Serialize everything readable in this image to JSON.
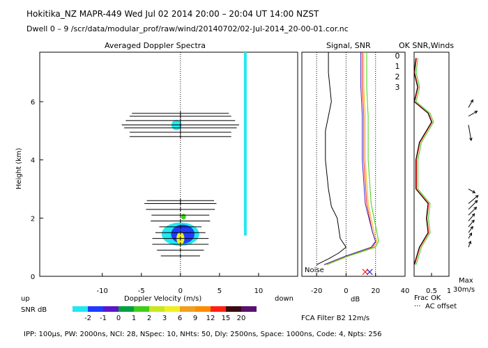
{
  "header": {
    "line1": "Hokitika_NZ   MAPR-449   Wed Jul 02 2014 20:00 – 20:04 UT 14:00 NZST",
    "line2": "Dwell   0 –   9   /scr/data/modular_prof/raw/wind/20140702/02-Jul-2014_20-00-01.cor.nc"
  },
  "footer": {
    "params": "IPP: 100µs,  PW: 2000ns,  NCI:  28,  NSpec: 10, NHts: 50,  Dly: 2500ns,  Space: 1000ns,  Code: 4,  Npts: 256",
    "fca": "FCA Filter B2 12m/s"
  },
  "colors": {
    "cyan": "#22e8f0",
    "blue": "#1f3bff",
    "purple": "#5a16c8",
    "green": "#3ecf1a",
    "yellow": "#f0f020",
    "red": "#ff2010",
    "orange": "#ff9a00",
    "noise": "#000000"
  },
  "chart_data": [
    {
      "id": "spectra",
      "type": "heatmap",
      "title": "Averaged Doppler Spectra",
      "xlabel": "Doppler Velocity (m/s)",
      "ylabel": "Height (km)",
      "xlim": [
        -18,
        15
      ],
      "ylim": [
        0,
        7.7
      ],
      "xticks": [
        -10,
        -5,
        0,
        5,
        10
      ],
      "yticks": [
        0,
        2,
        4,
        6
      ],
      "labels": {
        "up": "up",
        "down": "down"
      },
      "colorbar": {
        "label": "SNR dB",
        "levels": [
          "-2",
          "-1",
          "0",
          "1",
          "2",
          "3",
          "6",
          "9",
          "12",
          "15",
          "20"
        ],
        "colors": [
          "#22e8f0",
          "#1f3bff",
          "#5a16c8",
          "#00a040",
          "#3ecf1a",
          "#c8e81e",
          "#f0f020",
          "#f0a020",
          "#ff8c00",
          "#ff2010",
          "#3a0a10",
          "#5a1070"
        ]
      },
      "echo_regions": [
        {
          "name": "upper-echo",
          "center_v": -0.5,
          "center_h": 5.2,
          "width_v": 1.3,
          "height_km": 0.35,
          "level": "cyan"
        },
        {
          "name": "low-cyan",
          "center_v": 0.0,
          "center_h": 1.45,
          "width_v": 4.8,
          "height_km": 0.8,
          "level": "cyan"
        },
        {
          "name": "low-blue",
          "center_v": 0.3,
          "center_h": 1.45,
          "width_v": 3.0,
          "height_km": 0.65,
          "level": "blue"
        },
        {
          "name": "low-yellow",
          "center_v": 0.0,
          "center_h": 1.3,
          "width_v": 1.0,
          "height_km": 0.45,
          "level": "yellow"
        },
        {
          "name": "mid-green",
          "center_v": 0.4,
          "center_h": 2.05,
          "width_v": 0.6,
          "height_km": 0.2,
          "level": "green"
        }
      ],
      "clutter_line_velocity": 8.3,
      "clutter_line_height_range": [
        1.4,
        7.7
      ],
      "error_bar_heights": [
        0.7,
        0.9,
        1.1,
        1.3,
        1.5,
        1.7,
        1.9,
        2.1,
        2.3,
        2.5,
        2.6,
        4.8,
        4.95,
        5.1,
        5.2,
        5.35,
        5.5,
        5.6
      ],
      "error_bar_halfwidths": [
        2.5,
        3.0,
        3.6,
        3.6,
        3.2,
        2.7,
        3.8,
        3.7,
        4.4,
        4.6,
        4.3,
        6.5,
        6.5,
        7.2,
        7.5,
        7.0,
        6.5,
        6.2
      ]
    },
    {
      "id": "signal",
      "type": "line",
      "title": "Signal, SNR",
      "xlabel": "dB",
      "xlim": [
        -30,
        40
      ],
      "xticks": [
        -20,
        0,
        20,
        40
      ],
      "noise_label": "Noise",
      "series": [
        {
          "name": "signal",
          "color": "#000000",
          "heights": [
            0.4,
            0.6,
            0.8,
            1.0,
            1.3,
            2.0,
            2.4,
            3.0,
            4.0,
            5.0,
            5.5,
            6.0,
            7.0,
            7.7
          ],
          "values": [
            -20,
            -12,
            -5,
            0,
            -4,
            -6,
            -10,
            -12,
            -14,
            -14,
            -12,
            -10,
            -12,
            -12
          ]
        },
        {
          "name": "SNR 0",
          "color": "#ff2010",
          "heights": [
            0.4,
            0.7,
            1.0,
            1.2,
            1.5,
            2.5,
            4.0,
            5.5,
            6.5,
            7.7
          ],
          "values": [
            -15,
            0,
            18,
            20,
            18,
            14,
            12,
            12,
            11,
            11
          ]
        },
        {
          "name": "SNR 1",
          "color": "#f0b000",
          "heights": [
            0.4,
            0.7,
            1.0,
            1.2,
            1.5,
            2.5,
            4.0,
            5.5,
            6.5,
            7.7
          ],
          "values": [
            -14,
            1,
            19,
            21,
            19,
            15,
            13,
            13,
            12,
            12
          ]
        },
        {
          "name": "SNR 2",
          "color": "#3ecf1a",
          "heights": [
            0.4,
            0.7,
            1.0,
            1.2,
            1.5,
            2.5,
            4.0,
            5.5,
            6.5,
            7.7
          ],
          "values": [
            -13,
            2,
            20,
            22,
            21,
            17,
            15,
            15,
            14,
            14
          ]
        },
        {
          "name": "SNR 3",
          "color": "#4020c0",
          "heights": [
            0.4,
            0.7,
            1.0,
            1.2,
            1.5,
            2.5,
            4.0,
            5.5,
            6.5,
            7.7
          ],
          "values": [
            -15,
            0,
            17,
            20,
            18,
            13,
            11,
            11,
            10,
            10
          ]
        }
      ],
      "noise_markers": [
        {
          "value": 13,
          "height": 0.15,
          "color": "#ff2010"
        },
        {
          "value": 16,
          "height": 0.15,
          "color": "#4020c0"
        }
      ]
    },
    {
      "id": "winds",
      "type": "line",
      "title": "OK SNR,Winds",
      "legend": [
        {
          "label": "0",
          "color": "#ff2010"
        },
        {
          "label": "1",
          "color": "#f0b000"
        },
        {
          "label": "2",
          "color": "#3ecf1a"
        },
        {
          "label": "3",
          "color": "#4020c0"
        }
      ],
      "xticks": [
        "0.5",
        "1"
      ],
      "xlabel": "Frac OK",
      "xlabel2": "AC offset",
      "max_label": "Max",
      "max_value": "30m/s",
      "heights": [
        0.4,
        0.6,
        1.0,
        1.5,
        2.0,
        2.5,
        3.0,
        4.0,
        4.6,
        5.0,
        5.3,
        5.6,
        6.0,
        6.5,
        7.0,
        7.5
      ],
      "frac_ok": [
        0.0,
        0.05,
        0.15,
        0.4,
        0.35,
        0.4,
        0.05,
        0.05,
        0.15,
        0.35,
        0.5,
        0.4,
        0.0,
        0.1,
        0.0,
        0.05
      ],
      "wind_arrows": [
        {
          "height": 1.0,
          "speed": 10,
          "dir_deg": 70
        },
        {
          "height": 1.3,
          "speed": 10,
          "dir_deg": 60
        },
        {
          "height": 1.5,
          "speed": 12,
          "dir_deg": 55
        },
        {
          "height": 1.7,
          "speed": 14,
          "dir_deg": 50
        },
        {
          "height": 1.9,
          "speed": 15,
          "dir_deg": 50
        },
        {
          "height": 2.1,
          "speed": 18,
          "dir_deg": 45
        },
        {
          "height": 2.3,
          "speed": 20,
          "dir_deg": 45
        },
        {
          "height": 2.5,
          "speed": 20,
          "dir_deg": 40
        },
        {
          "height": 3.0,
          "speed": 12,
          "dir_deg": -30
        },
        {
          "height": 5.2,
          "speed": 25,
          "dir_deg": 280
        },
        {
          "height": 5.5,
          "speed": 16,
          "dir_deg": 30
        },
        {
          "height": 5.8,
          "speed": 14,
          "dir_deg": 60
        }
      ]
    }
  ]
}
